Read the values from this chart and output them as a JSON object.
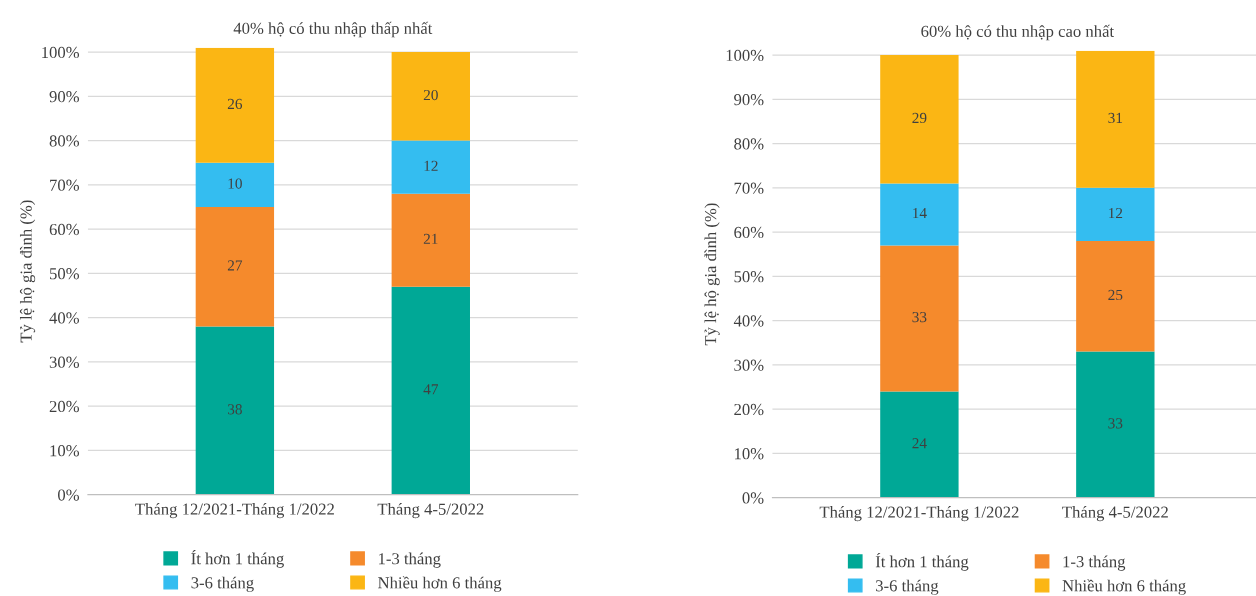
{
  "chart_data": [
    {
      "type": "bar",
      "stacked": true,
      "title": "40% hộ có thu nhập thấp nhất",
      "ylabel": "Tỷ lệ hộ gia đình (%)",
      "categories": [
        "Tháng 12/2021-Tháng 1/2022",
        "Tháng 4-5/2022"
      ],
      "series": [
        {
          "name": "Ít hơn 1 tháng",
          "color": "#00a896",
          "values": [
            38,
            47
          ]
        },
        {
          "name": "1-3 tháng",
          "color": "#f58a2c",
          "values": [
            27,
            21
          ]
        },
        {
          "name": "3-6 tháng",
          "color": "#34bdf0",
          "values": [
            10,
            12
          ]
        },
        {
          "name": "Nhiều hơn 6 tháng",
          "color": "#fbb614",
          "values": [
            26,
            20
          ]
        }
      ],
      "ylim": [
        0,
        101
      ],
      "yticks": [
        {
          "value": 0,
          "label": "0%"
        },
        {
          "value": 10,
          "label": "10%"
        },
        {
          "value": 20,
          "label": "20%"
        },
        {
          "value": 30,
          "label": "30%"
        },
        {
          "value": 40,
          "label": "40%"
        },
        {
          "value": 50,
          "label": "50%"
        },
        {
          "value": 60,
          "label": "60%"
        },
        {
          "value": 70,
          "label": "70%"
        },
        {
          "value": 80,
          "label": "80%"
        },
        {
          "value": 90,
          "label": "90%"
        },
        {
          "value": 100,
          "label": "100%"
        }
      ],
      "grid": "y",
      "legend": "bottom",
      "data_labels": true
    },
    {
      "type": "bar",
      "stacked": true,
      "title": "60% hộ có thu nhập cao nhất",
      "ylabel": "Tỷ lệ hộ gia đình (%)",
      "categories": [
        "Tháng 12/2021-Tháng 1/2022",
        "Tháng 4-5/2022"
      ],
      "series": [
        {
          "name": "Ít hơn 1 tháng",
          "color": "#00a896",
          "values": [
            24,
            33
          ]
        },
        {
          "name": "1-3 tháng",
          "color": "#f58a2c",
          "values": [
            33,
            25
          ]
        },
        {
          "name": "3-6 tháng",
          "color": "#34bdf0",
          "values": [
            14,
            12
          ]
        },
        {
          "name": "Nhiều hơn 6 tháng",
          "color": "#fbb614",
          "values": [
            29,
            31
          ]
        }
      ],
      "ylim": [
        0,
        101
      ],
      "yticks": [
        {
          "value": 0,
          "label": "0%"
        },
        {
          "value": 10,
          "label": "10%"
        },
        {
          "value": 20,
          "label": "20%"
        },
        {
          "value": 30,
          "label": "30%"
        },
        {
          "value": 40,
          "label": "40%"
        },
        {
          "value": 50,
          "label": "50%"
        },
        {
          "value": 60,
          "label": "60%"
        },
        {
          "value": 70,
          "label": "70%"
        },
        {
          "value": 80,
          "label": "80%"
        },
        {
          "value": 90,
          "label": "90%"
        },
        {
          "value": 100,
          "label": "100%"
        }
      ],
      "grid": "y",
      "legend": "bottom",
      "data_labels": true
    }
  ]
}
